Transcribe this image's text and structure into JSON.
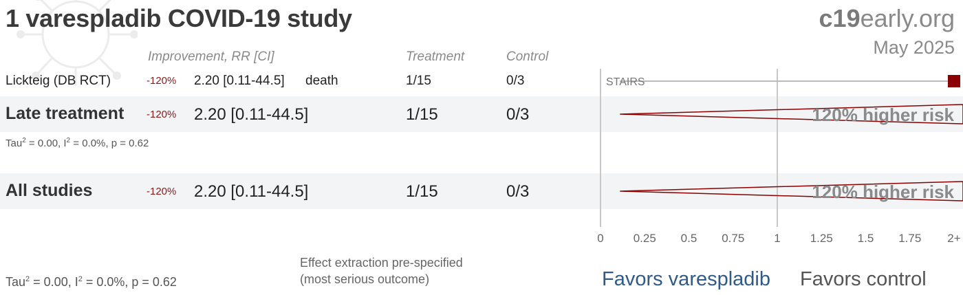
{
  "header": {
    "title": "1 varespladib COVID-19 study",
    "brand_prefix": "c19",
    "brand_suffix": "early.org",
    "date": "May 2025"
  },
  "columns": {
    "improvement": "Improvement, RR [CI]",
    "treatment": "Treatment",
    "control": "Control"
  },
  "rows": {
    "study": {
      "name": "Lickteig (DB RCT)",
      "improvement": "-120%",
      "rr_ci": "2.20 [0.11-44.5]",
      "outcome": "death",
      "treatment": "1/15",
      "control": "0/3",
      "label": "STAIRS"
    },
    "late": {
      "name": "Late treatment",
      "improvement": "-120%",
      "rr_ci": "2.20 [0.11-44.5]",
      "treatment": "1/15",
      "control": "0/3",
      "het_tau": "Tau",
      "het_rest": " = 0.00, I",
      "het_end": " = 0.0%, p = 0.62",
      "risk_label": "120% higher risk"
    },
    "all": {
      "name": "All studies",
      "improvement": "-120%",
      "rr_ci": "2.20 [0.11-44.5]",
      "treatment": "1/15",
      "control": "0/3",
      "risk_label": "120% higher risk"
    }
  },
  "footer": {
    "het_tau": "Tau",
    "het_rest": " = 0.00, I",
    "het_end": " = 0.0%, p = 0.62",
    "sup": "2",
    "note_line1": "Effect extraction pre-specified",
    "note_line2": "(most serious outcome)",
    "favors_left": "Favors varespladib",
    "favors_right": "Favors control"
  },
  "chart_data": {
    "type": "forest",
    "x_scale": "linear",
    "xlim": [
      0,
      2
    ],
    "x_ticks": [
      "0",
      "0.25",
      "0.5",
      "0.75",
      "1",
      "1.25",
      "1.5",
      "1.75",
      "2+"
    ],
    "x_tick_values": [
      0,
      0.25,
      0.5,
      0.75,
      1,
      1.25,
      1.5,
      1.75,
      2
    ],
    "null_line": 1,
    "studies": [
      {
        "name": "Lickteig (DB RCT)",
        "rr": 2.2,
        "ci_low": 0.11,
        "ci_high": 44.5,
        "marker": "square"
      }
    ],
    "pooled": [
      {
        "name": "Late treatment",
        "rr": 2.2,
        "ci_low": 0.11,
        "ci_high": 44.5,
        "marker": "diamond"
      },
      {
        "name": "All studies",
        "rr": 2.2,
        "ci_low": 0.11,
        "ci_high": 44.5,
        "marker": "diamond"
      }
    ],
    "colors": {
      "effect": "#8b0000",
      "axis": "#c8c8c8",
      "text": "#555555"
    }
  }
}
